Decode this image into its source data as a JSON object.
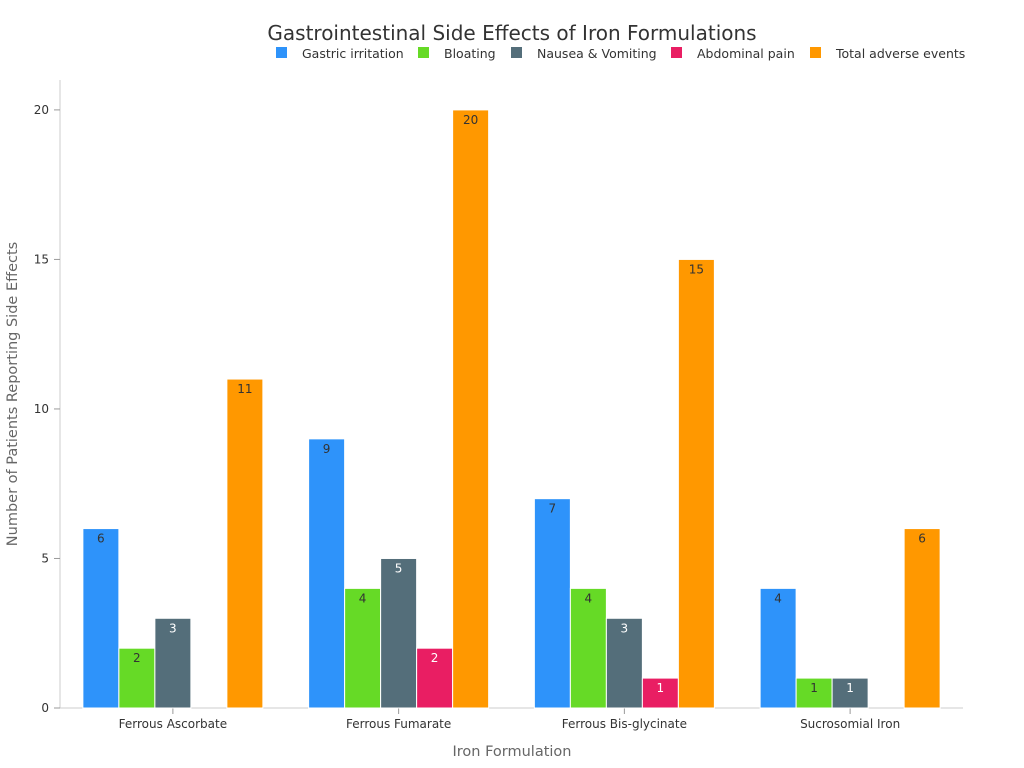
{
  "chart_data": {
    "type": "bar",
    "title": "Gastrointestinal Side Effects of Iron Formulations",
    "xlabel": "Iron Formulation",
    "ylabel": "Number of Patients Reporting Side Effects",
    "categories": [
      "Ferrous Ascorbate",
      "Ferrous Fumarate",
      "Ferrous Bis-glycinate",
      "Sucrosomial Iron"
    ],
    "series": [
      {
        "name": "Gastric irritation",
        "color": "#2E93FA",
        "label_color": "#333333",
        "values": [
          6,
          9,
          7,
          4
        ]
      },
      {
        "name": "Bloating",
        "color": "#66DA26",
        "label_color": "#333333",
        "values": [
          2,
          4,
          4,
          1
        ]
      },
      {
        "name": "Nausea & Vomiting",
        "color": "#546E7A",
        "label_color": "#ffffff",
        "values": [
          3,
          5,
          3,
          1
        ]
      },
      {
        "name": "Abdominal pain",
        "color": "#E91E63",
        "label_color": "#ffffff",
        "values": [
          0,
          2,
          1,
          0
        ]
      },
      {
        "name": "Total adverse events",
        "color": "#FF9800",
        "label_color": "#333333",
        "values": [
          11,
          20,
          15,
          6
        ]
      }
    ],
    "ylim": [
      0,
      21
    ],
    "yticks": [
      0,
      5,
      10,
      15,
      20
    ],
    "grid": false,
    "legend": "top"
  }
}
